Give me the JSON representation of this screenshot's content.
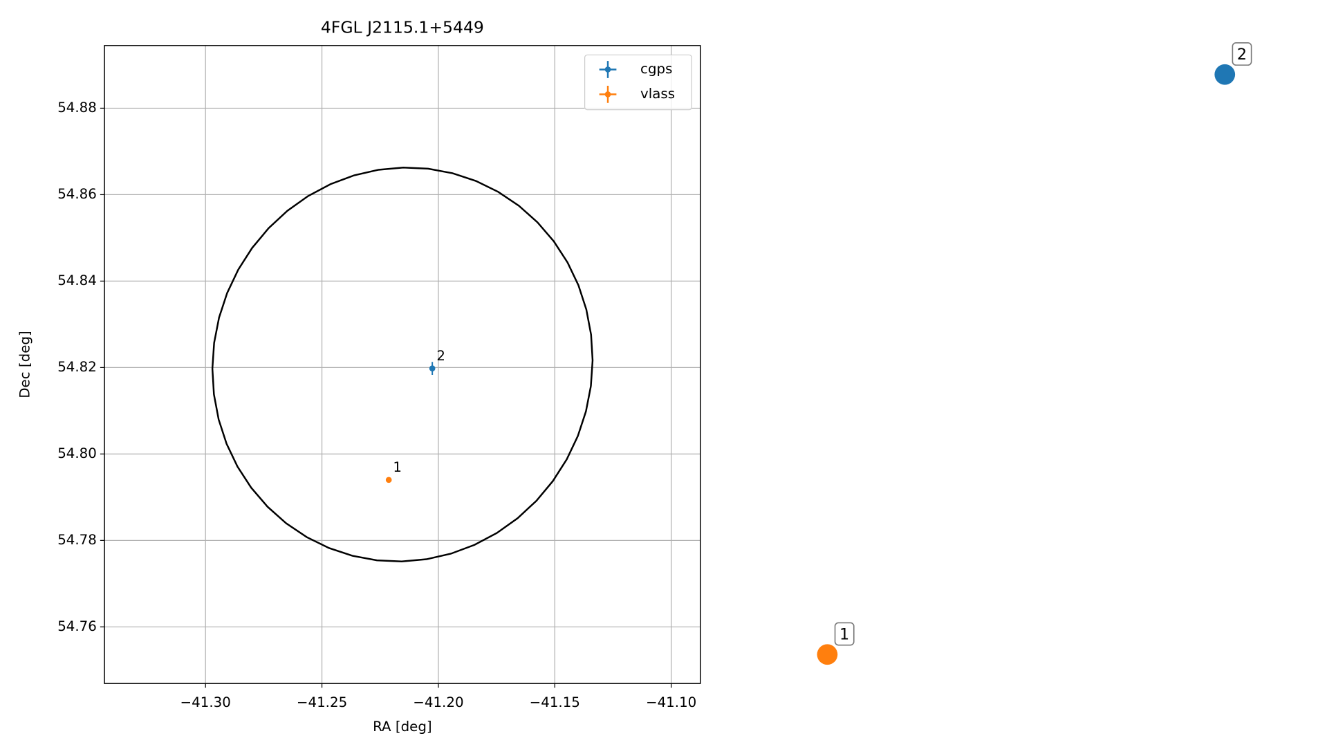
{
  "chart_data": [
    {
      "type": "errorbar",
      "title": "4FGL J2115.1+5449",
      "xlabel": "RA [deg]",
      "ylabel": "Dec [deg]",
      "xlim": [
        -41.3434,
        -41.0875
      ],
      "ylim": [
        54.7469,
        54.8945
      ],
      "xticks": [
        {
          "value": -41.3,
          "label": "−41.30"
        },
        {
          "value": -41.25,
          "label": "−41.25"
        },
        {
          "value": -41.2,
          "label": "−41.20"
        },
        {
          "value": -41.15,
          "label": "−41.15"
        },
        {
          "value": -41.1,
          "label": "−41.10"
        }
      ],
      "yticks": [
        54.76,
        54.78,
        {
          "value": 54.8,
          "label": "54.80"
        },
        54.82,
        54.84,
        54.86,
        54.88
      ],
      "grid": true,
      "legend": "upper right",
      "series": [
        {
          "name": "cgps",
          "color": "#1f77b4",
          "x": [
            -41.2026
          ],
          "y": [
            54.8198
          ],
          "xerr": [
            0.0005
          ],
          "yerr": [
            0.0015
          ],
          "labels": [
            "2"
          ]
        },
        {
          "name": "vlass",
          "color": "#ff7f0e",
          "x": [
            -41.2213
          ],
          "y": [
            54.794
          ],
          "xerr": [
            0.0002
          ],
          "yerr": [
            0.0003
          ],
          "labels": [
            "1"
          ]
        }
      ],
      "ellipse": {
        "color": "#000000",
        "center": [
          -41.2154,
          54.8207
        ],
        "axis1": [
          0.0809,
          -0.005
        ],
        "axis2": [
          0.011,
          0.0453
        ]
      }
    },
    {
      "type": "scatter",
      "xlim": [
        -41.22224,
        -41.20166
      ],
      "ylim": [
        54.79271,
        54.82109
      ],
      "series": [
        {
          "color": "#1f77b4",
          "x": [
            -41.2026
          ],
          "y": [
            54.8198
          ],
          "labels": [
            "2"
          ]
        },
        {
          "color": "#ff7f0e",
          "x": [
            -41.2213
          ],
          "y": [
            54.794
          ],
          "labels": [
            "1"
          ]
        }
      ]
    }
  ]
}
